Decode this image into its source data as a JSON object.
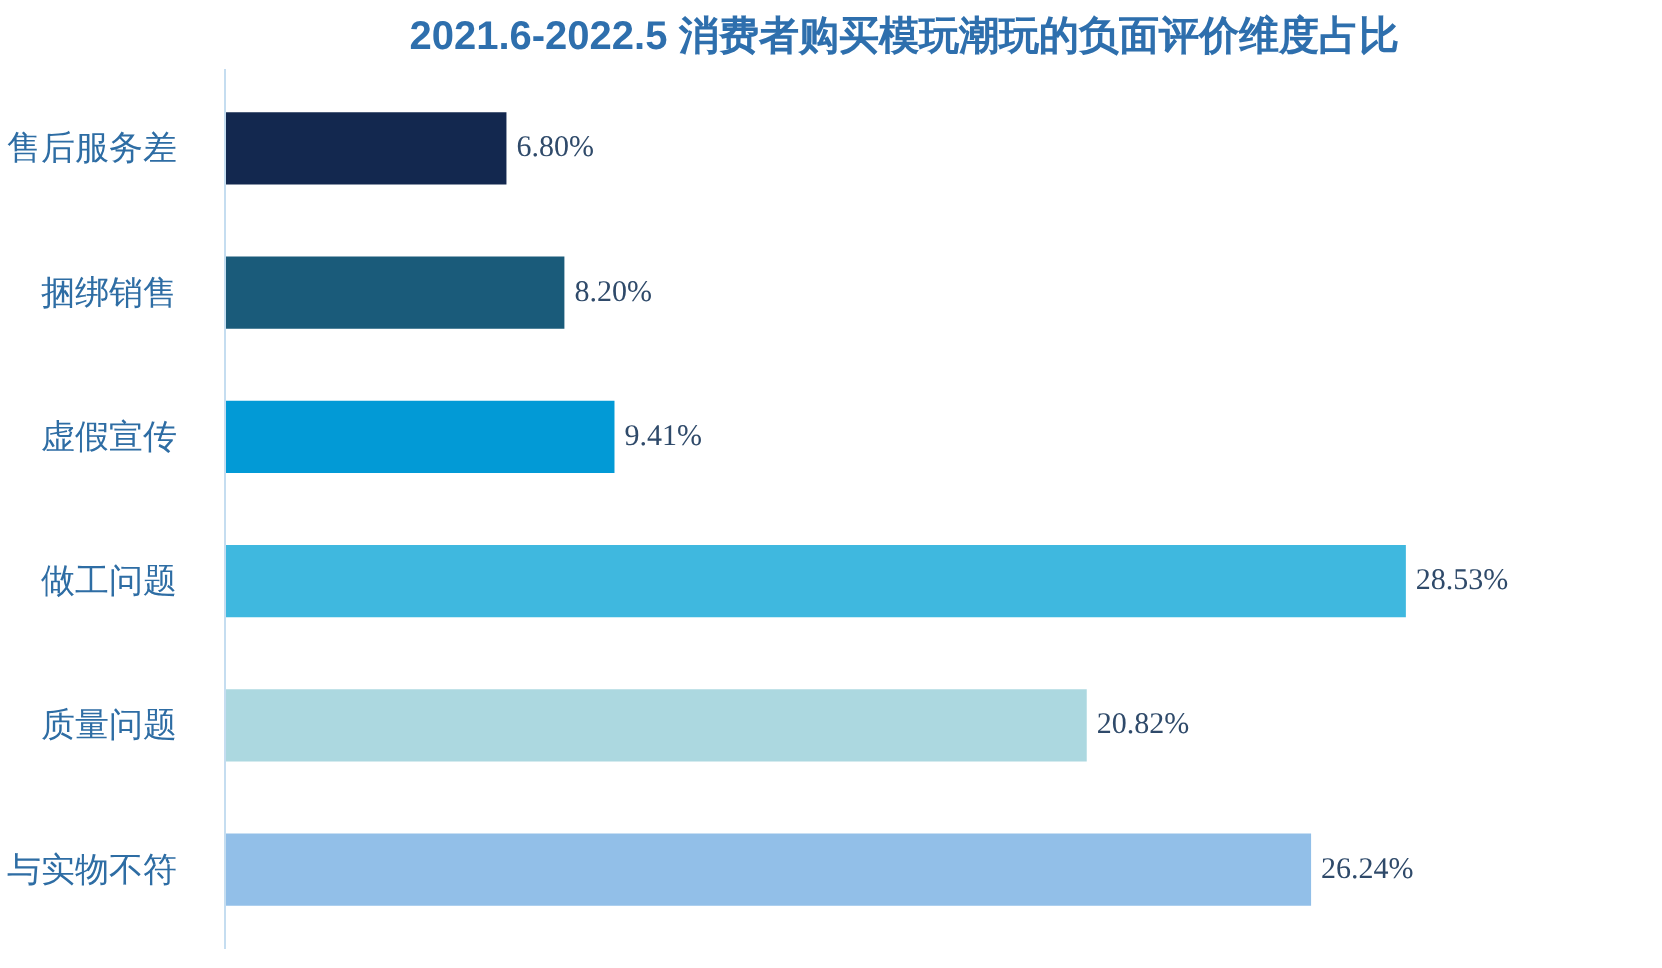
{
  "chart_data": {
    "type": "bar",
    "orientation": "horizontal",
    "title": "2021.6-2022.5 消费者购买模玩潮玩的负面评价维度占比",
    "categories": [
      "售后服务差",
      "捆绑销售",
      "虚假宣传",
      "做工问题",
      "质量问题",
      "与实物不符"
    ],
    "values": [
      6.8,
      8.2,
      9.41,
      28.53,
      20.82,
      26.24
    ],
    "value_labels": [
      "6.80%",
      "8.20%",
      "9.41%",
      "28.53%",
      "20.82%",
      "26.24%"
    ],
    "colors": [
      "#13284f",
      "#1a5b7a",
      "#029ad6",
      "#3fb8df",
      "#acd8e0",
      "#92bfe8"
    ]
  }
}
